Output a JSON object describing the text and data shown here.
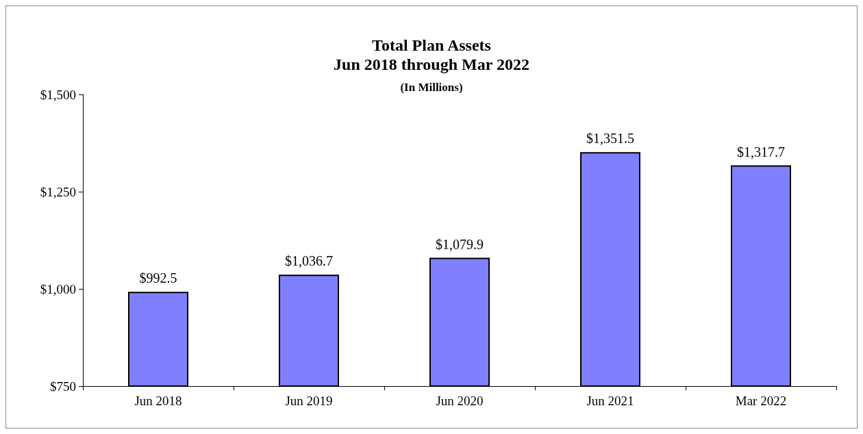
{
  "chart_data": {
    "type": "bar",
    "title": "Total Plan Assets",
    "subtitle": "Jun 2018 through Mar 2022",
    "annotations": [
      "(In Millions)"
    ],
    "categories": [
      "Jun 2018",
      "Jun 2019",
      "Jun 2020",
      "Jun 2021",
      "Mar 2022"
    ],
    "values": [
      992.5,
      1036.7,
      1079.9,
      1351.5,
      1317.7
    ],
    "value_labels": [
      "$992.5",
      "$1,036.7",
      "$1,079.9",
      "$1,351.5",
      "$1,317.7"
    ],
    "color": "#8080ff",
    "ylim": [
      750,
      1500
    ],
    "yticks": [
      {
        "value": 750,
        "label": "$750"
      },
      {
        "value": 1000,
        "label": "$1,000"
      },
      {
        "value": 1250,
        "label": "$1,250"
      },
      {
        "value": 1500,
        "label": "$1,500"
      }
    ],
    "grid": false
  }
}
